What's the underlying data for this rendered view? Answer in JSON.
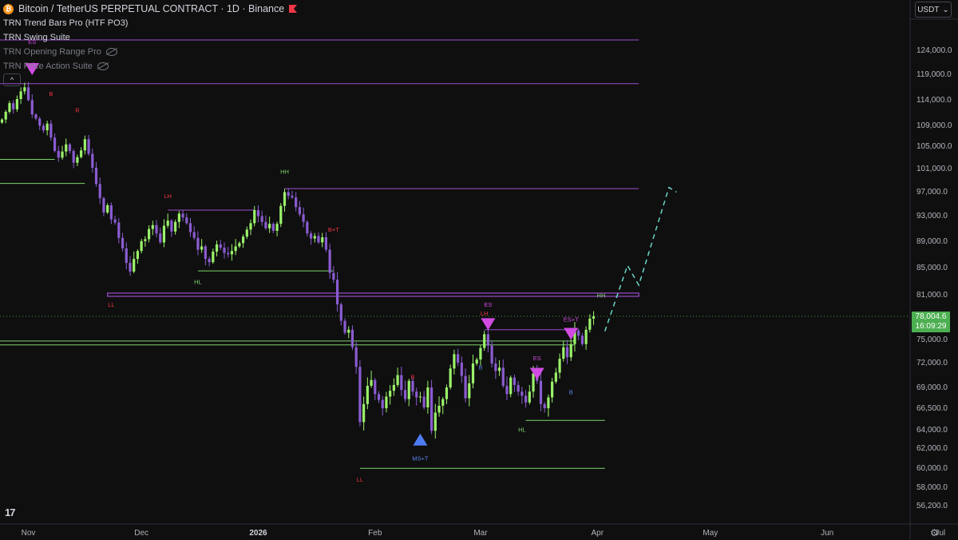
{
  "header": {
    "symbol_title": "Bitcoin / TetherUS PERPETUAL CONTRACT · 1D · Binance",
    "coin_glyph": "₿",
    "indicators": [
      {
        "label": "TRN Trend Bars Pro (HTF PO3)",
        "hidden": false
      },
      {
        "label": "TRN Swing Suite",
        "hidden": false
      },
      {
        "label": "TRN Opening Range Pro",
        "hidden": true
      },
      {
        "label": "TRN Price Action Suite",
        "hidden": true
      }
    ],
    "collapse_glyph": "^",
    "currency": "USDT"
  },
  "last_price": {
    "value": "78,004.6",
    "countdown": "16:09:29"
  },
  "colors": {
    "up": "#9bf26a",
    "down": "#8a5cd1",
    "purple_line": "#9c4dcc",
    "green_line": "#7bd56a",
    "accent": "#d14be3",
    "blue": "#4d7cf2"
  },
  "brand": {
    "logo": "17"
  },
  "chart_data": {
    "type": "candlestick",
    "y_ticks": [
      "124,000.0",
      "119,000.0",
      "114,000.0",
      "109,000.0",
      "105,000.0",
      "101,000.0",
      "97,000.0",
      "93,000.0",
      "89,000.0",
      "85,000.0",
      "81,000.0",
      "78,004.6",
      "75,000.0",
      "72,000.0",
      "69,000.0",
      "66,500.0",
      "64,000.0",
      "62,000.0",
      "60,000.0",
      "58,000.0",
      "56,200.0"
    ],
    "x_ticks": [
      "Nov",
      "Dec",
      "2026",
      "Feb",
      "Mar",
      "Apr",
      "May",
      "Jun",
      "Jul"
    ],
    "x_tick_dates": [
      "2025-11-01",
      "2025-12-01",
      "2026-01-01",
      "2026-02-01",
      "2026-03-01",
      "2026-04-01",
      "2026-05-01",
      "2026-06-01",
      "2026-07-01"
    ],
    "first_candle_date": "2025-10-25",
    "closes": [
      110000,
      111500,
      113200,
      112000,
      114000,
      115500,
      116300,
      113800,
      111000,
      110200,
      108800,
      107900,
      109200,
      106500,
      104000,
      102800,
      103900,
      105200,
      104000,
      101900,
      102900,
      104100,
      106200,
      103500,
      101000,
      98200,
      95800,
      93400,
      94600,
      92300,
      91800,
      89400,
      87800,
      85600,
      84300,
      86200,
      87400,
      88900,
      89200,
      90800,
      91400,
      90100,
      88700,
      91300,
      92100,
      90400,
      91900,
      93200,
      92600,
      91700,
      90300,
      89400,
      87600,
      88100,
      86200,
      85700,
      87300,
      88400,
      87900,
      87100,
      86900,
      87400,
      88100,
      88600,
      89600,
      90700,
      91700,
      93800,
      92800,
      91900,
      90900,
      91600,
      90500,
      91600,
      94500,
      96800,
      96200,
      95900,
      94300,
      93100,
      91900,
      90100,
      89300,
      89700,
      88700,
      89500,
      87600,
      84100,
      83100,
      79600,
      77400,
      75800,
      76200,
      73900,
      71400,
      64800,
      66900,
      69100,
      69800,
      68100,
      67400,
      66400,
      67800,
      68500,
      69200,
      70400,
      68600,
      67500,
      69700,
      68400,
      67700,
      67800,
      66500,
      68900,
      63800,
      65900,
      66700,
      67500,
      68900,
      71200,
      73000,
      71900,
      70300,
      67600,
      69400,
      71800,
      72300,
      73800,
      75600,
      74100,
      71800,
      70900,
      71300,
      69100,
      68100,
      70100,
      69200,
      68400,
      67900,
      67100,
      68400,
      70600,
      69700,
      66900,
      66400,
      67700,
      69600,
      70700,
      72400,
      73900,
      72600,
      74300,
      76100,
      75400,
      74300,
      76200,
      77700,
      78004.6
    ],
    "levels": [
      {
        "price": 126000,
        "start": 0,
        "end": 169,
        "color": "purple"
      },
      {
        "price": 117000,
        "start": 0,
        "end": 169,
        "color": "purple"
      },
      {
        "price": 102500,
        "start": 0,
        "end": 14,
        "color": "green"
      },
      {
        "price": 98300,
        "start": 0,
        "end": 22,
        "color": "green"
      },
      {
        "price": 97400,
        "start": 75,
        "end": 169,
        "color": "purple"
      },
      {
        "price": 93800,
        "start": 44,
        "end": 67,
        "color": "purple"
      },
      {
        "price": 84400,
        "start": 52,
        "end": 88,
        "color": "green"
      },
      {
        "price": 80900,
        "start": 28,
        "end": 169,
        "color": "purple_band"
      },
      {
        "price": 76200,
        "start": 128,
        "end": 152,
        "color": "purple"
      },
      {
        "price": 74700,
        "start": 0,
        "end": 152,
        "color": "green"
      },
      {
        "price": 74200,
        "start": 0,
        "end": 152,
        "color": "green"
      },
      {
        "price": 65000,
        "start": 139,
        "end": 160,
        "color": "green"
      },
      {
        "price": 59900,
        "start": 95,
        "end": 160,
        "color": "green"
      }
    ],
    "labels": [
      {
        "text": "ES",
        "i": 8,
        "price": 125200,
        "color": "purple"
      },
      {
        "text": "B",
        "i": 13,
        "price": 114600,
        "color": "red"
      },
      {
        "text": "R",
        "i": 20,
        "price": 111400,
        "color": "red"
      },
      {
        "text": "LH",
        "i": 44,
        "price": 95800,
        "color": "red"
      },
      {
        "text": "HH",
        "i": 75,
        "price": 100000,
        "color": "green"
      },
      {
        "text": "B+T",
        "i": 88,
        "price": 90400,
        "color": "red"
      },
      {
        "text": "HL",
        "i": 52,
        "price": 82500,
        "color": "green"
      },
      {
        "text": "LL",
        "i": 29,
        "price": 79300,
        "color": "red"
      },
      {
        "text": "ES",
        "i": 129,
        "price": 79300,
        "color": "purple"
      },
      {
        "text": "LH",
        "i": 128,
        "price": 78100,
        "color": "red"
      },
      {
        "text": "B",
        "i": 127,
        "price": 71100,
        "color": "blue"
      },
      {
        "text": "ES",
        "i": 142,
        "price": 72200,
        "color": "purple"
      },
      {
        "text": "ES+T",
        "i": 151,
        "price": 77300,
        "color": "purple"
      },
      {
        "text": "B",
        "i": 151,
        "price": 68100,
        "color": "blue"
      },
      {
        "text": "HH",
        "i": 159,
        "price": 80500,
        "color": "green"
      },
      {
        "text": "B",
        "i": 109,
        "price": 69900,
        "color": "red"
      },
      {
        "text": "HL",
        "i": 138,
        "price": 63700,
        "color": "green"
      },
      {
        "text": "MS+T",
        "i": 111,
        "price": 60700,
        "color": "blue"
      },
      {
        "text": "LL",
        "i": 95,
        "price": 58500,
        "color": "red"
      }
    ],
    "markers": [
      {
        "i": 8,
        "price": 120000,
        "dir": "down",
        "color": "purple"
      },
      {
        "i": 129,
        "price": 77000,
        "dir": "down",
        "color": "purple"
      },
      {
        "i": 142,
        "price": 70600,
        "dir": "down",
        "color": "purple"
      },
      {
        "i": 151,
        "price": 75700,
        "dir": "down",
        "color": "purple"
      },
      {
        "i": 111,
        "price": 62800,
        "dir": "up",
        "color": "blue"
      }
    ],
    "projection": [
      [
        160,
        76000
      ],
      [
        166,
        85200
      ],
      [
        169,
        82300
      ],
      [
        177,
        97600
      ],
      [
        179,
        96800
      ]
    ]
  }
}
